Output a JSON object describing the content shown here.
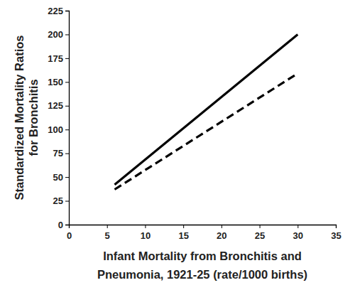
{
  "chart_data": {
    "type": "line",
    "x_label": [
      "Infant Mortality from Bronchitis and",
      "Pneumonia, 1921-25 (rate/1000 births)"
    ],
    "y_label": [
      "Standardized Mortality Ratios",
      "for Bronchitis"
    ],
    "x": [
      6,
      30
    ],
    "series": [
      {
        "color": "#000000",
        "line_style": "solid",
        "values": [
          42,
          200
        ]
      },
      {
        "color": "#000000",
        "line_style": "dashed",
        "values": [
          37,
          159
        ]
      }
    ],
    "xlim": [
      0,
      35
    ],
    "xticks": [
      0,
      5,
      10,
      15,
      20,
      25,
      30,
      35
    ],
    "ylim": [
      0,
      225
    ],
    "yticks": [
      0,
      25,
      50,
      75,
      100,
      125,
      150,
      175,
      200,
      225
    ],
    "grid": false
  }
}
